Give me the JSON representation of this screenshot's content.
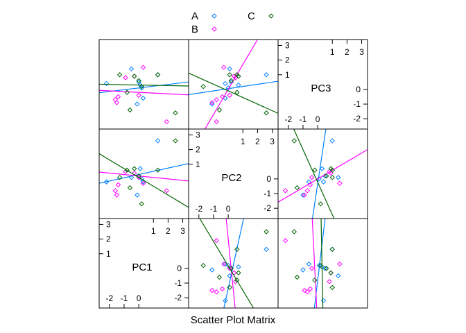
{
  "chart_data": {
    "type": "scatter",
    "plot_type": "scatter plot matrix",
    "xlabel": "Scatter Plot Matrix",
    "variables": [
      "PC1",
      "PC2",
      "PC3"
    ],
    "diagonal": {
      "PC1": {
        "ticks_low": [
          "-2",
          "-1",
          "0"
        ],
        "ticks_high": [
          "1",
          "2",
          "3"
        ],
        "range": [
          -2.7,
          3.4
        ]
      },
      "PC2": {
        "ticks_low": [
          "-2",
          "-1",
          "0"
        ],
        "ticks_high": [
          "1",
          "2",
          "3"
        ],
        "range": [
          -2.7,
          3.4
        ]
      },
      "PC3": {
        "ticks_low": [
          "-2",
          "-1",
          "0"
        ],
        "ticks_high": [
          "1",
          "2",
          "3"
        ],
        "range": [
          -2.7,
          3.4
        ]
      }
    },
    "legend": {
      "position": "top",
      "entries": [
        {
          "label": "A",
          "color": "#0080ff"
        },
        {
          "label": "B",
          "color": "#ff00ff"
        },
        {
          "label": "C",
          "color": "#006400"
        }
      ]
    },
    "series": [
      {
        "name": "A",
        "color": "#0080ff",
        "points": [
          {
            "PC1": 1.3,
            "PC2": 2.6,
            "PC3": 1.0
          },
          {
            "PC1": 0.1,
            "PC2": 0.7,
            "PC3": 0.3
          },
          {
            "PC1": 0.0,
            "PC2": 0.2,
            "PC3": 0.5
          },
          {
            "PC1": -0.5,
            "PC2": 0.1,
            "PC3": 1.4
          },
          {
            "PC1": 0.3,
            "PC2": -0.2,
            "PC3": -0.6
          },
          {
            "PC1": -2.2,
            "PC2": -0.2,
            "PC3": 0.4
          },
          {
            "PC1": -0.1,
            "PC2": -1.1,
            "PC3": -1.0
          },
          {
            "PC1": 0.2,
            "PC2": 0.0,
            "PC3": 0.1
          }
        ],
        "fits": {
          "PC2~PC1": [
            0.3,
            0.22
          ],
          "PC3~PC1": [
            0.1,
            0.12
          ],
          "PC3~PC2": [
            0.05,
            0.15
          ]
        }
      },
      {
        "name": "B",
        "color": "#ff00ff",
        "points": [
          {
            "PC1": -1.5,
            "PC2": -1.1,
            "PC3": -0.9
          },
          {
            "PC1": -1.6,
            "PC2": -0.8,
            "PC3": -0.7
          },
          {
            "PC1": -1.4,
            "PC2": -0.4,
            "PC3": -0.5
          },
          {
            "PC1": -0.9,
            "PC2": 0.5,
            "PC3": 0.8
          },
          {
            "PC1": -0.3,
            "PC2": 0.4,
            "PC3": 0.9
          },
          {
            "PC1": 0.3,
            "PC2": -0.3,
            "PC3": 1.5
          },
          {
            "PC1": 1.9,
            "PC2": -0.8,
            "PC3": -2.2
          },
          {
            "PC1": 0.0,
            "PC2": 0.1,
            "PC3": -0.4
          }
        ],
        "fits": {
          "PC2~PC1": [
            0.2,
            -0.1
          ],
          "PC3~PC1": [
            -0.2,
            -0.05
          ],
          "PC3~PC2": [
            0.0,
            1.7
          ]
        }
      },
      {
        "name": "C",
        "color": "#006400",
        "points": [
          {
            "PC1": 2.5,
            "PC2": 2.6,
            "PC3": -1.6
          },
          {
            "PC1": 1.3,
            "PC2": 0.6,
            "PC3": 1.0
          },
          {
            "PC1": -1.3,
            "PC2": 0.1,
            "PC3": 1.0
          },
          {
            "PC1": -0.3,
            "PC2": 0.7,
            "PC3": 0.9
          },
          {
            "PC1": -0.8,
            "PC2": 0.6,
            "PC3": -0.2
          },
          {
            "PC1": 0.2,
            "PC2": -1.7,
            "PC3": 0.2
          },
          {
            "PC1": -0.6,
            "PC2": -0.6,
            "PC3": -1.4
          },
          {
            "PC1": 0.0,
            "PC2": 0.2,
            "PC3": 0.6
          }
        ],
        "fits": {
          "PC2~PC1": [
            0.1,
            -0.6
          ],
          "PC3~PC1": [
            0.3,
            -0.02
          ],
          "PC3~PC2": [
            -0.1,
            -0.45
          ]
        }
      }
    ]
  }
}
